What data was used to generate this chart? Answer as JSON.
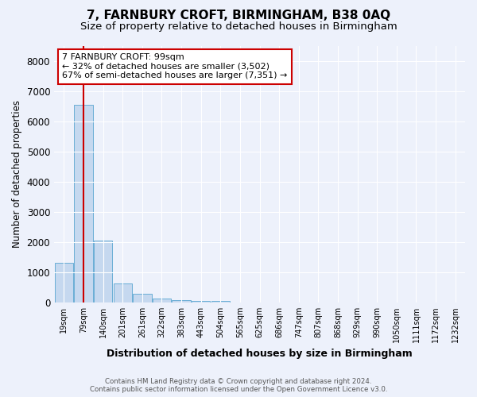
{
  "title": "7, FARNBURY CROFT, BIRMINGHAM, B38 0AQ",
  "subtitle": "Size of property relative to detached houses in Birmingham",
  "xlabel": "Distribution of detached houses by size in Birmingham",
  "ylabel": "Number of detached properties",
  "footer_line1": "Contains HM Land Registry data © Crown copyright and database right 2024.",
  "footer_line2": "Contains public sector information licensed under the Open Government Licence v3.0.",
  "categories": [
    "19sqm",
    "79sqm",
    "140sqm",
    "201sqm",
    "261sqm",
    "322sqm",
    "383sqm",
    "443sqm",
    "504sqm",
    "565sqm",
    "625sqm",
    "686sqm",
    "747sqm",
    "807sqm",
    "868sqm",
    "929sqm",
    "990sqm",
    "1050sqm",
    "1111sqm",
    "1172sqm",
    "1232sqm"
  ],
  "values": [
    1300,
    6550,
    2050,
    630,
    280,
    120,
    70,
    45,
    60,
    0,
    0,
    0,
    0,
    0,
    0,
    0,
    0,
    0,
    0,
    0,
    0
  ],
  "bar_color": "#c5d8ef",
  "bar_edge_color": "#6aaed6",
  "red_line_x": 1.0,
  "annotation_text_line1": "7 FARNBURY CROFT: 99sqm",
  "annotation_text_line2": "← 32% of detached houses are smaller (3,502)",
  "annotation_text_line3": "67% of semi-detached houses are larger (7,351) →",
  "annotation_box_color": "#ffffff",
  "annotation_border_color": "#cc0000",
  "ylim": [
    0,
    8500
  ],
  "yticks": [
    0,
    1000,
    2000,
    3000,
    4000,
    5000,
    6000,
    7000,
    8000
  ],
  "background_color": "#edf1fb",
  "grid_color": "#ffffff",
  "title_fontsize": 11,
  "subtitle_fontsize": 9.5
}
